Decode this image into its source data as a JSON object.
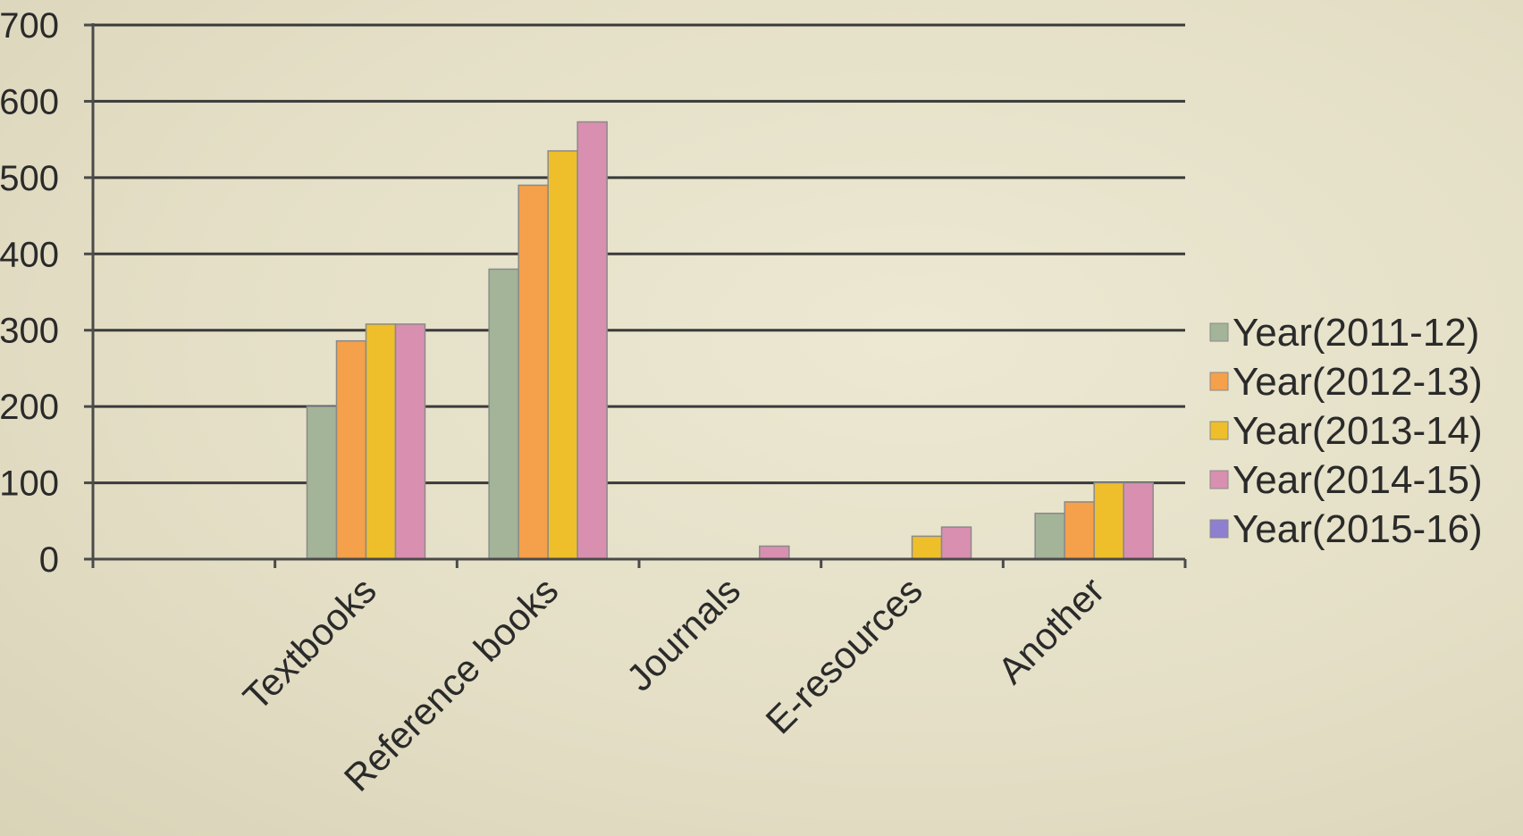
{
  "chart_data": {
    "type": "bar",
    "title": "",
    "xlabel": "",
    "ylabel": "",
    "ylim": [
      0,
      700
    ],
    "yticks": [
      0,
      100,
      200,
      300,
      400,
      500,
      600,
      700
    ],
    "grid": true,
    "legend_position": "right",
    "categories": [
      "",
      "Textbooks",
      "Reference books",
      "Journals",
      "E-resources",
      "Another"
    ],
    "series": [
      {
        "name": "Year(2011-12)",
        "color": "#a3b499",
        "values": [
          0,
          200,
          380,
          0,
          0,
          60
        ]
      },
      {
        "name": "Year(2012-13)",
        "color": "#f5a04a",
        "values": [
          0,
          286,
          490,
          0,
          0,
          75
        ]
      },
      {
        "name": "Year(2013-14)",
        "color": "#eebf2b",
        "values": [
          0,
          308,
          535,
          0,
          30,
          100
        ]
      },
      {
        "name": "Year(2014-15)",
        "color": "#d98fb0",
        "values": [
          0,
          308,
          573,
          17,
          42,
          100
        ]
      },
      {
        "name": "Year(2015-16)",
        "color": "#8f7fd0",
        "values": [
          0,
          0,
          0,
          0,
          0,
          0
        ]
      }
    ]
  }
}
